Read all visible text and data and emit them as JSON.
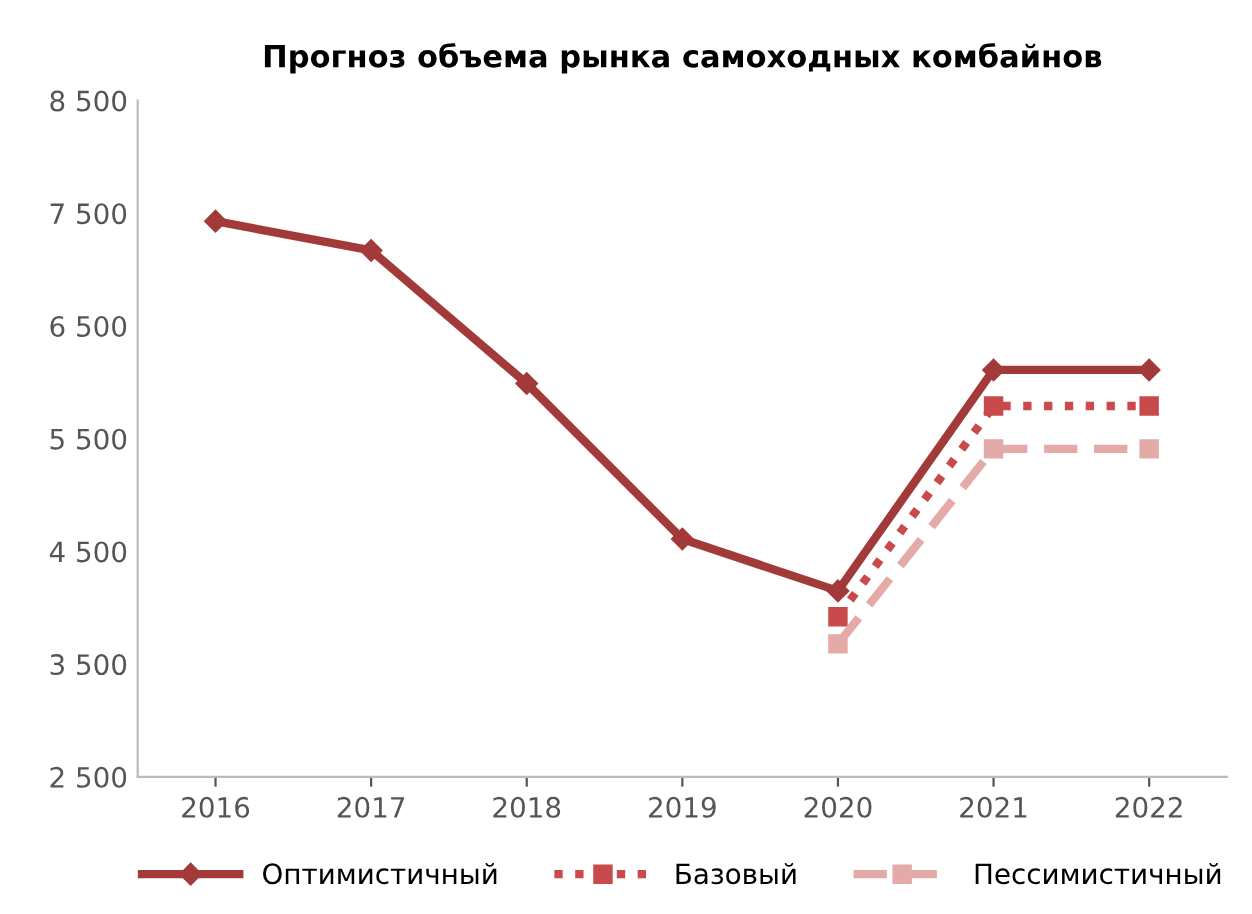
{
  "chart_data": {
    "type": "line",
    "title": "Прогноз объема рынка самоходных комбайнов",
    "categories": [
      "2016",
      "2017",
      "2018",
      "2019",
      "2020",
      "2021",
      "2022"
    ],
    "series": [
      {
        "name": "Оптимистичный",
        "color": "#a33a3a",
        "marker": "diamond",
        "line_style": "solid",
        "values": [
          7430,
          7170,
          5990,
          4610,
          4150,
          6110,
          6110
        ]
      },
      {
        "name": "Базовый",
        "color": "#c94a4a",
        "marker": "square",
        "line_style": "dotted",
        "values": [
          null,
          null,
          null,
          null,
          3920,
          5790,
          5790
        ]
      },
      {
        "name": "Пессимистичный",
        "color": "#e3aaa8",
        "marker": "square",
        "line_style": "dashed",
        "values": [
          null,
          null,
          null,
          null,
          3680,
          5410,
          5410
        ]
      }
    ],
    "ylim": [
      2500,
      8500
    ],
    "yticks": [
      {
        "value": 2500,
        "label": "2 500"
      },
      {
        "value": 3500,
        "label": "3 500"
      },
      {
        "value": 4500,
        "label": "4 500"
      },
      {
        "value": 5500,
        "label": "5 500"
      },
      {
        "value": 6500,
        "label": "6 500"
      },
      {
        "value": 7500,
        "label": "7 500"
      },
      {
        "value": 8500,
        "label": "8 500"
      }
    ],
    "grid": false,
    "legend": "bottom"
  }
}
